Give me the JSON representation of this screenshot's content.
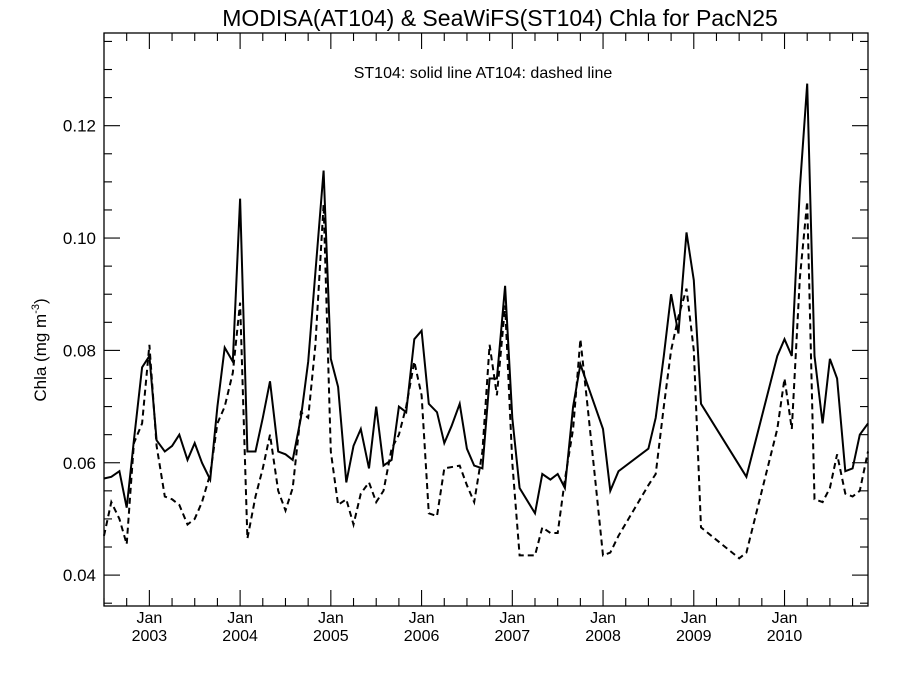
{
  "chart_data": {
    "type": "line",
    "title": "MODISA(AT104) & SeaWiFS(ST104)  Chla for PacN25",
    "annotation": "ST104: solid line   AT104: dashed line",
    "ylabel": "Chla (mg m",
    "ylabel_sup": "-3",
    "ylabel_close": ")",
    "xlim": [
      2002.5,
      2010.92
    ],
    "ylim": [
      0.0345,
      0.1365
    ],
    "yticks": [
      0.04,
      0.06,
      0.08,
      0.1,
      0.12
    ],
    "ytick_labels": [
      "0.04",
      "0.06",
      "0.08",
      "0.10",
      "0.12"
    ],
    "xtick_month_label": "Jan",
    "xticks": [
      {
        "year_value": 2003,
        "year_label": "2003"
      },
      {
        "year_value": 2004,
        "year_label": "2004"
      },
      {
        "year_value": 2005,
        "year_label": "2005"
      },
      {
        "year_value": 2006,
        "year_label": "2006"
      },
      {
        "year_value": 2007,
        "year_label": "2007"
      },
      {
        "year_value": 2008,
        "year_label": "2008"
      },
      {
        "year_value": 2009,
        "year_label": "2009"
      },
      {
        "year_value": 2010,
        "year_label": "2010"
      }
    ],
    "grid": false,
    "series": [
      {
        "style": "solid",
        "points": [
          [
            2002.5,
            0.0572
          ],
          [
            2002.58,
            0.0575
          ],
          [
            2002.67,
            0.0585
          ],
          [
            2002.75,
            0.052
          ],
          [
            2002.83,
            0.064
          ],
          [
            2002.92,
            0.077
          ],
          [
            2003.0,
            0.079
          ],
          [
            2003.08,
            0.064
          ],
          [
            2003.17,
            0.062
          ],
          [
            2003.25,
            0.063
          ],
          [
            2003.33,
            0.065
          ],
          [
            2003.42,
            0.0605
          ],
          [
            2003.5,
            0.0635
          ],
          [
            2003.58,
            0.06
          ],
          [
            2003.67,
            0.057
          ],
          [
            2003.75,
            0.07
          ],
          [
            2003.83,
            0.0805
          ],
          [
            2003.92,
            0.078
          ],
          [
            2004.0,
            0.107
          ],
          [
            2004.08,
            0.062
          ],
          [
            2004.17,
            0.062
          ],
          [
            2004.25,
            0.068
          ],
          [
            2004.33,
            0.0745
          ],
          [
            2004.42,
            0.062
          ],
          [
            2004.5,
            0.0615
          ],
          [
            2004.58,
            0.0605
          ],
          [
            2004.67,
            0.068
          ],
          [
            2004.75,
            0.078
          ],
          [
            2004.92,
            0.112
          ],
          [
            2005.0,
            0.0785
          ],
          [
            2005.08,
            0.0735
          ],
          [
            2005.17,
            0.0565
          ],
          [
            2005.25,
            0.063
          ],
          [
            2005.33,
            0.066
          ],
          [
            2005.42,
            0.059
          ],
          [
            2005.5,
            0.07
          ],
          [
            2005.58,
            0.0595
          ],
          [
            2005.67,
            0.0605
          ],
          [
            2005.75,
            0.07
          ],
          [
            2005.83,
            0.069
          ],
          [
            2005.92,
            0.082
          ],
          [
            2006.0,
            0.0835
          ],
          [
            2006.08,
            0.0705
          ],
          [
            2006.17,
            0.069
          ],
          [
            2006.25,
            0.0635
          ],
          [
            2006.33,
            0.0665
          ],
          [
            2006.42,
            0.0705
          ],
          [
            2006.5,
            0.0625
          ],
          [
            2006.58,
            0.0595
          ],
          [
            2006.67,
            0.059
          ],
          [
            2006.75,
            0.075
          ],
          [
            2006.83,
            0.075
          ],
          [
            2006.92,
            0.0915
          ],
          [
            2007.0,
            0.068
          ],
          [
            2007.08,
            0.0555
          ],
          [
            2007.25,
            0.051
          ],
          [
            2007.33,
            0.058
          ],
          [
            2007.42,
            0.057
          ],
          [
            2007.5,
            0.058
          ],
          [
            2007.58,
            0.0555
          ],
          [
            2007.67,
            0.07
          ],
          [
            2007.75,
            0.0775
          ],
          [
            2008.0,
            0.066
          ],
          [
            2008.08,
            0.055
          ],
          [
            2008.17,
            0.0585
          ],
          [
            2008.5,
            0.0625
          ],
          [
            2008.58,
            0.068
          ],
          [
            2008.67,
            0.079
          ],
          [
            2008.75,
            0.09
          ],
          [
            2008.83,
            0.083
          ],
          [
            2008.92,
            0.101
          ],
          [
            2009.0,
            0.0925
          ],
          [
            2009.08,
            0.0705
          ],
          [
            2009.58,
            0.0575
          ],
          [
            2009.92,
            0.079
          ],
          [
            2010.0,
            0.082
          ],
          [
            2010.08,
            0.079
          ],
          [
            2010.17,
            0.109
          ],
          [
            2010.25,
            0.1275
          ],
          [
            2010.33,
            0.079
          ],
          [
            2010.42,
            0.067
          ],
          [
            2010.5,
            0.0785
          ],
          [
            2010.58,
            0.075
          ],
          [
            2010.67,
            0.0585
          ],
          [
            2010.75,
            0.059
          ],
          [
            2010.83,
            0.065
          ],
          [
            2010.92,
            0.067
          ]
        ]
      },
      {
        "style": "dashed",
        "points": [
          [
            2002.5,
            0.047
          ],
          [
            2002.58,
            0.053
          ],
          [
            2002.67,
            0.05
          ],
          [
            2002.75,
            0.0455
          ],
          [
            2002.83,
            0.0635
          ],
          [
            2002.92,
            0.067
          ],
          [
            2003.0,
            0.081
          ],
          [
            2003.08,
            0.063
          ],
          [
            2003.17,
            0.054
          ],
          [
            2003.25,
            0.0535
          ],
          [
            2003.33,
            0.0525
          ],
          [
            2003.42,
            0.049
          ],
          [
            2003.5,
            0.05
          ],
          [
            2003.58,
            0.053
          ],
          [
            2003.67,
            0.058
          ],
          [
            2003.75,
            0.067
          ],
          [
            2003.83,
            0.07
          ],
          [
            2003.92,
            0.076
          ],
          [
            2004.0,
            0.0885
          ],
          [
            2004.08,
            0.0465
          ],
          [
            2004.17,
            0.054
          ],
          [
            2004.25,
            0.059
          ],
          [
            2004.33,
            0.065
          ],
          [
            2004.42,
            0.055
          ],
          [
            2004.5,
            0.0515
          ],
          [
            2004.58,
            0.0555
          ],
          [
            2004.67,
            0.069
          ],
          [
            2004.75,
            0.068
          ],
          [
            2004.83,
            0.081
          ],
          [
            2004.92,
            0.106
          ],
          [
            2005.0,
            0.062
          ],
          [
            2005.08,
            0.0525
          ],
          [
            2005.17,
            0.0535
          ],
          [
            2005.25,
            0.049
          ],
          [
            2005.33,
            0.0545
          ],
          [
            2005.42,
            0.0565
          ],
          [
            2005.5,
            0.053
          ],
          [
            2005.58,
            0.055
          ],
          [
            2005.67,
            0.0625
          ],
          [
            2005.75,
            0.065
          ],
          [
            2005.83,
            0.07
          ],
          [
            2005.92,
            0.078
          ],
          [
            2006.0,
            0.072
          ],
          [
            2006.08,
            0.051
          ],
          [
            2006.17,
            0.0505
          ],
          [
            2006.25,
            0.059
          ],
          [
            2006.42,
            0.0595
          ],
          [
            2006.5,
            0.056
          ],
          [
            2006.58,
            0.053
          ],
          [
            2006.67,
            0.062
          ],
          [
            2006.75,
            0.081
          ],
          [
            2006.83,
            0.072
          ],
          [
            2006.92,
            0.088
          ],
          [
            2007.0,
            0.06
          ],
          [
            2007.08,
            0.0435
          ],
          [
            2007.25,
            0.0435
          ],
          [
            2007.33,
            0.0485
          ],
          [
            2007.42,
            0.0475
          ],
          [
            2007.5,
            0.0475
          ],
          [
            2007.58,
            0.057
          ],
          [
            2007.67,
            0.066
          ],
          [
            2007.75,
            0.082
          ],
          [
            2007.83,
            0.07
          ],
          [
            2007.92,
            0.056
          ],
          [
            2008.0,
            0.0435
          ],
          [
            2008.08,
            0.044
          ],
          [
            2008.17,
            0.047
          ],
          [
            2008.5,
            0.056
          ],
          [
            2008.58,
            0.058
          ],
          [
            2008.67,
            0.07
          ],
          [
            2008.75,
            0.08
          ],
          [
            2008.83,
            0.086
          ],
          [
            2008.92,
            0.091
          ],
          [
            2009.0,
            0.08
          ],
          [
            2009.08,
            0.0485
          ],
          [
            2009.5,
            0.043
          ],
          [
            2009.58,
            0.044
          ],
          [
            2009.92,
            0.066
          ],
          [
            2010.0,
            0.075
          ],
          [
            2010.08,
            0.066
          ],
          [
            2010.17,
            0.093
          ],
          [
            2010.25,
            0.1065
          ],
          [
            2010.33,
            0.0535
          ],
          [
            2010.42,
            0.053
          ],
          [
            2010.5,
            0.0555
          ],
          [
            2010.58,
            0.0615
          ],
          [
            2010.67,
            0.0545
          ],
          [
            2010.75,
            0.054
          ],
          [
            2010.83,
            0.055
          ],
          [
            2010.92,
            0.062
          ]
        ]
      }
    ]
  }
}
